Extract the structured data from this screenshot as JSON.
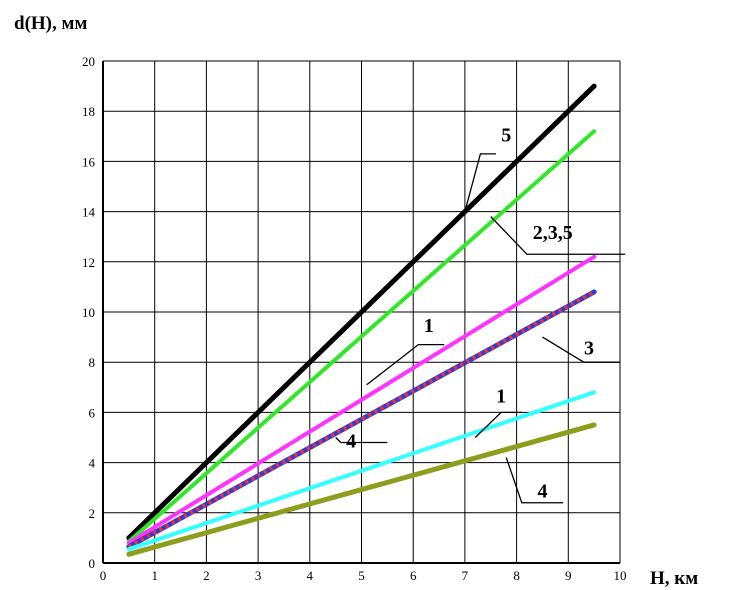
{
  "chart_data": {
    "type": "line",
    "ylabel": "d(H), мм",
    "xlabel": "H, км",
    "xlim": [
      0,
      10
    ],
    "ylim": [
      0,
      20
    ],
    "xticks": [
      "0",
      "1",
      "2",
      "3",
      "4",
      "5",
      "6",
      "7",
      "8",
      "9",
      "10"
    ],
    "yticks": [
      "0",
      "2",
      "4",
      "6",
      "8",
      "10",
      "12",
      "14",
      "16",
      "18",
      "20"
    ],
    "grid": true,
    "series": [
      {
        "x": [
          0.5,
          9.5
        ],
        "y": [
          1.0,
          19.0
        ],
        "color": "#000000",
        "width": 5
      },
      {
        "x": [
          0.5,
          9.5
        ],
        "y": [
          0.85,
          17.2
        ],
        "color": "#33e62a",
        "width": 4
      },
      {
        "x": [
          0.5,
          9.5
        ],
        "y": [
          0.8,
          12.2
        ],
        "color": "#ff33ff",
        "width": 4
      },
      {
        "x": [
          0.5,
          9.5
        ],
        "y": [
          0.65,
          10.8
        ],
        "color": "#2b3fd6",
        "width": 5,
        "overlay_color": "#ff2a2a"
      },
      {
        "x": [
          0.5,
          9.5
        ],
        "y": [
          0.55,
          6.8
        ],
        "color": "#33ffff",
        "width": 4
      },
      {
        "x": [
          0.5,
          9.5
        ],
        "y": [
          0.35,
          5.5
        ],
        "color": "#8c9e1c",
        "width": 5
      }
    ],
    "annotations": [
      {
        "text": "5",
        "x": 7.8,
        "y": 16.8,
        "leader": [
          [
            7.6,
            16.3
          ],
          [
            7.3,
            16.3
          ],
          [
            7.0,
            14.0
          ]
        ]
      },
      {
        "text": "2,3,5",
        "x": 8.7,
        "y": 12.9,
        "leader": [
          [
            10.1,
            12.3
          ],
          [
            8.2,
            12.3
          ],
          [
            7.5,
            13.8
          ]
        ]
      },
      {
        "text": "1",
        "x": 6.3,
        "y": 9.2,
        "leader": [
          [
            6.6,
            8.7
          ],
          [
            6.1,
            8.7
          ],
          [
            5.1,
            7.1
          ]
        ]
      },
      {
        "text": "3",
        "x": 9.4,
        "y": 8.3,
        "leader": [
          [
            10.0,
            8.0
          ],
          [
            9.3,
            8.0
          ],
          [
            8.5,
            9.0
          ]
        ]
      },
      {
        "text": "4",
        "x": 4.8,
        "y": 4.6,
        "leader": [
          [
            5.5,
            4.8
          ],
          [
            4.6,
            4.8
          ],
          [
            4.5,
            5.0
          ]
        ]
      },
      {
        "text": "1",
        "x": 7.7,
        "y": 6.4,
        "leader": [
          [
            8.1,
            6.0
          ],
          [
            7.7,
            6.0
          ],
          [
            7.2,
            5.0
          ]
        ]
      },
      {
        "text": "4",
        "x": 8.5,
        "y": 2.6,
        "leader": [
          [
            8.9,
            2.4
          ],
          [
            8.1,
            2.4
          ],
          [
            7.8,
            4.2
          ]
        ]
      }
    ]
  }
}
